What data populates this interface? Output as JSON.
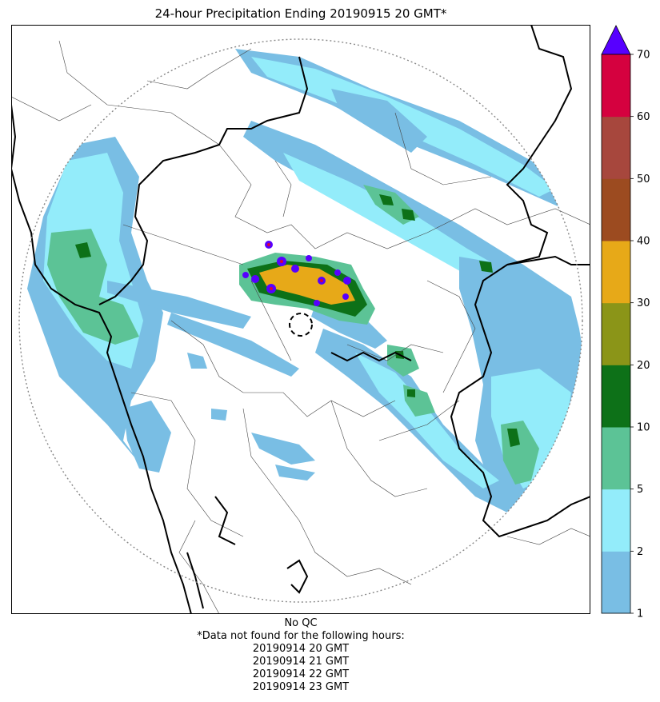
{
  "title": "24-hour Precipitation Ending 20190915 20 GMT*",
  "footer": {
    "qc": "No QC",
    "note": "*Data not found for the following hours:",
    "missing_hours": [
      "20190914 20 GMT",
      "20190914 21 GMT",
      "20190914 22 GMT",
      "20190914 23 GMT"
    ]
  },
  "colorbar": {
    "ticks": [
      "1",
      "2",
      "5",
      "10",
      "20",
      "30",
      "40",
      "50",
      "60",
      "70"
    ],
    "colors": [
      "#79bee4",
      "#93ecfa",
      "#5cc396",
      "#0d7118",
      "#8b9518",
      "#e7a918",
      "#9c4b20",
      "#a7473d",
      "#d5013f"
    ],
    "extend_color": "#5700ff"
  },
  "map": {
    "colors": {
      "light": "#79bee4",
      "cyan": "#93ecfa",
      "green": "#5cc396",
      "dark": "#0d7118",
      "purple": "#5700ff",
      "yellow": "#e7a918",
      "red": "#d5013f"
    }
  }
}
